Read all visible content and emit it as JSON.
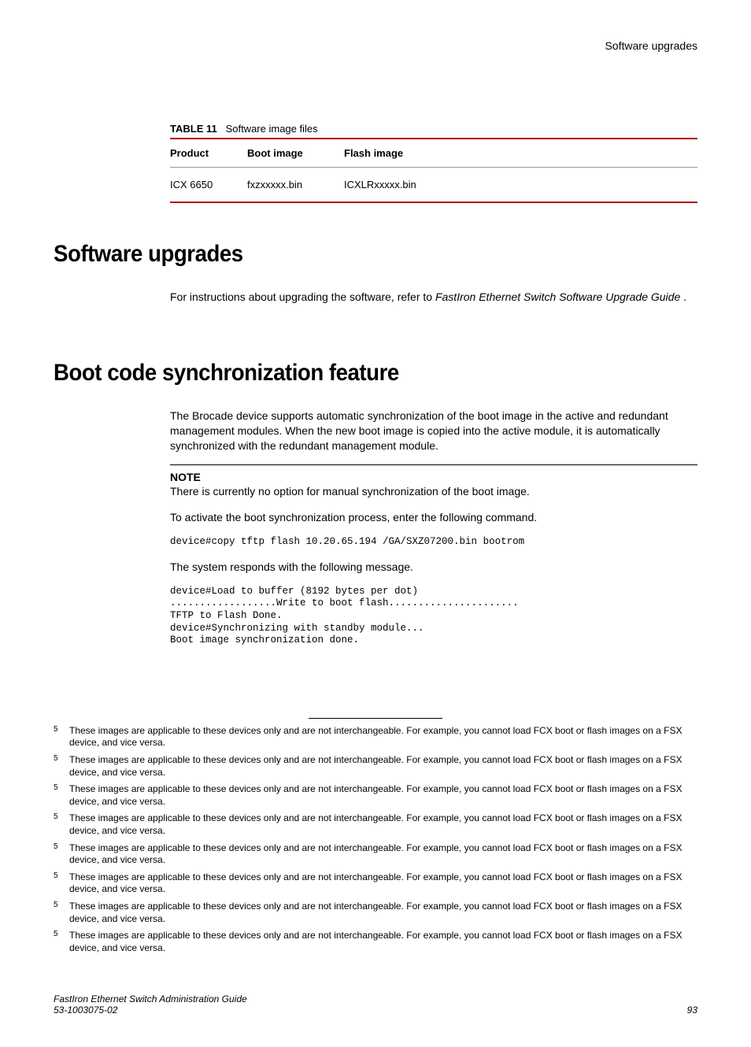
{
  "header": {
    "right": "Software upgrades"
  },
  "table": {
    "caption_label": "TABLE 11",
    "caption_text": "Software image files",
    "headers": {
      "product": "Product",
      "boot": "Boot image",
      "flash": "Flash image"
    },
    "row": {
      "product": "ICX 6650",
      "boot": "fxzxxxxx.bin",
      "flash": "ICXLRxxxxx.bin"
    }
  },
  "sec1": {
    "title": "Software upgrades",
    "para_a": "For instructions about upgrading the software, refer to ",
    "para_b_italic": "FastIron Ethernet Switch Software Upgrade Guide",
    "para_c": " ."
  },
  "sec2": {
    "title": "Boot code synchronization feature",
    "para1": "The Brocade device supports automatic synchronization of the boot image in the active and redundant management modules. When the new boot image is copied into the active module, it is automatically synchronized with the redundant management module.",
    "note_label": "NOTE",
    "note_text": "There is currently no option for manual synchronization of the boot image.",
    "para2": "To activate the boot synchronization process, enter the following command.",
    "code1": "device#copy tftp flash 10.20.65.194 /GA/SXZ07200.bin bootrom",
    "para3": "The system responds with the following message.",
    "code2": "device#Load to buffer (8192 bytes per dot)\n..................Write to boot flash......................\nTFTP to Flash Done.\ndevice#Synchronizing with standby module...\nBoot image synchronization done."
  },
  "footnote": {
    "num": "5",
    "text": "These images are applicable to these devices only and are not interchangeable. For example, you cannot load FCX boot or flash images on a FSX device, and vice versa."
  },
  "footer": {
    "line1": "FastIron Ethernet Switch Administration Guide",
    "line2": "53-1003075-02",
    "page": "93"
  }
}
